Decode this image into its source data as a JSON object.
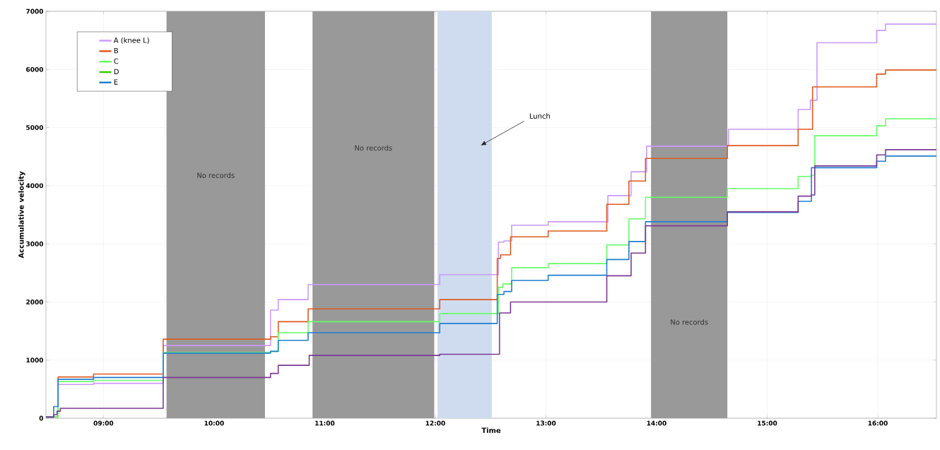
{
  "chart_data": {
    "type": "step",
    "xlabel": "Time",
    "ylabel": "Accumulative velocity",
    "xlim": [
      8.48,
      16.53
    ],
    "ylim": [
      0,
      7000
    ],
    "xticks": [
      {
        "value": 9,
        "label": "09:00"
      },
      {
        "value": 10,
        "label": "10:00"
      },
      {
        "value": 11,
        "label": "11:00"
      },
      {
        "value": 12,
        "label": "12:00"
      },
      {
        "value": 13,
        "label": "13:00"
      },
      {
        "value": 14,
        "label": "14:00"
      },
      {
        "value": 15,
        "label": "15:00"
      },
      {
        "value": 16,
        "label": "16:00"
      }
    ],
    "yticks": [
      0,
      1000,
      2000,
      3000,
      4000,
      5000,
      6000,
      7000
    ],
    "grid": true,
    "legend": "top left",
    "series": [
      {
        "name": "A (knee L)",
        "color": "#cc99ff",
        "x": [
          8.48,
          8.59,
          8.91,
          9.54,
          10.51,
          10.58,
          10.85,
          12.04,
          12.57,
          12.62,
          12.69,
          13.02,
          13.56,
          13.77,
          13.91,
          14.65,
          15.28,
          15.39,
          15.45,
          15.99,
          16.07,
          16.53
        ],
        "values": [
          20,
          580,
          600,
          1250,
          1860,
          2040,
          2300,
          2470,
          3030,
          3050,
          3320,
          3380,
          3830,
          4240,
          4680,
          4970,
          5310,
          5470,
          6460,
          6670,
          6780,
          6780
        ]
      },
      {
        "name": "B",
        "color": "#e05a1e",
        "x": [
          8.48,
          8.59,
          8.91,
          9.54,
          10.51,
          10.58,
          10.85,
          12.04,
          12.56,
          12.59,
          12.68,
          13.02,
          13.55,
          13.75,
          13.9,
          14.64,
          15.28,
          15.41,
          15.99,
          16.07,
          16.53
        ],
        "values": [
          20,
          710,
          760,
          1360,
          1400,
          1660,
          1880,
          2040,
          2750,
          2810,
          3120,
          3220,
          3680,
          4080,
          4470,
          4690,
          4970,
          5700,
          5920,
          5990,
          5990
        ]
      },
      {
        "name": "C",
        "color": "#66ff66",
        "x": [
          8.48,
          8.59,
          8.91,
          9.54,
          10.51,
          10.58,
          10.85,
          12.04,
          12.57,
          12.61,
          12.69,
          13.02,
          13.55,
          13.75,
          13.9,
          14.64,
          15.28,
          15.4,
          15.43,
          15.99,
          16.07,
          16.53
        ],
        "values": [
          20,
          630,
          650,
          1130,
          1150,
          1470,
          1660,
          1800,
          2250,
          2310,
          2590,
          2660,
          2980,
          3430,
          3800,
          3950,
          4160,
          4180,
          4860,
          5030,
          5150,
          5150
        ]
      },
      {
        "name": "D",
        "color": "#33cc00"
      },
      {
        "name": "E",
        "color": "#1f7fcf",
        "x": [
          8.48,
          8.55,
          8.59,
          8.91,
          9.54,
          10.51,
          10.58,
          10.85,
          12.04,
          12.56,
          12.62,
          12.69,
          13.02,
          13.55,
          13.75,
          13.9,
          14.64,
          15.28,
          15.4,
          15.99,
          16.07,
          16.53
        ],
        "values": [
          20,
          200,
          670,
          700,
          1120,
          1150,
          1340,
          1470,
          1630,
          2130,
          2180,
          2370,
          2460,
          2730,
          3040,
          3380,
          3540,
          3730,
          4310,
          4420,
          4510,
          4510
        ]
      },
      {
        "color": "#7b3a96",
        "x": [
          8.48,
          8.55,
          8.58,
          8.61,
          9.54,
          10.51,
          10.58,
          10.86,
          12.04,
          12.58,
          12.68,
          13.55,
          13.77,
          13.9,
          14.64,
          15.28,
          15.4,
          15.43,
          15.99,
          16.07,
          16.53
        ],
        "values": [
          20,
          60,
          120,
          170,
          700,
          770,
          910,
          1080,
          1100,
          1810,
          2000,
          2450,
          2840,
          3310,
          3550,
          3820,
          3840,
          4340,
          4530,
          4620,
          4620
        ]
      }
    ],
    "bands": [
      {
        "axis": "x",
        "from": 9.57,
        "to": 10.46,
        "label": "No records",
        "color": "#999999"
      },
      {
        "axis": "x",
        "from": 10.89,
        "to": 11.99,
        "label": "No records",
        "color": "#999999"
      },
      {
        "axis": "x",
        "from": 12.02,
        "to": 12.51,
        "color": "#cfdcef"
      },
      {
        "axis": "x",
        "from": 13.95,
        "to": 14.64,
        "label": "No records",
        "color": "#999999"
      }
    ],
    "annotations": [
      "Lunch"
    ]
  }
}
